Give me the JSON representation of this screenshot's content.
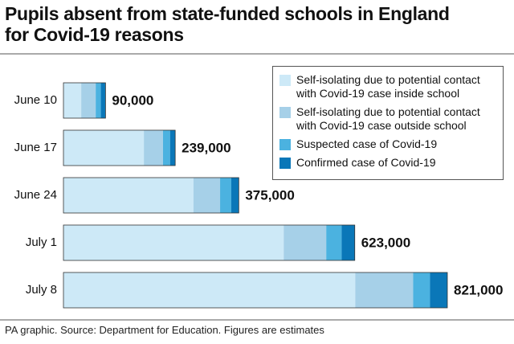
{
  "chart_data": {
    "type": "stacked-bar-horizontal",
    "title": "Pupils absent from state-funded schools in England for Covid-19 reasons",
    "source": "PA graphic. Source: Department for Education. Figures are estimates",
    "categories": [
      "June 10",
      "June 17",
      "June 24",
      "July 1",
      "July 8"
    ],
    "series": [
      {
        "name": "Self-isolating due to potential contact with Covid-19 case inside school",
        "color": "#cde9f7",
        "values": [
          38000,
          172000,
          278000,
          471000,
          624000
        ]
      },
      {
        "name": "Self-isolating due to potential contact with Covid-19 case outside school",
        "color": "#a6d0e8",
        "values": [
          31000,
          41000,
          57000,
          91000,
          124000
        ]
      },
      {
        "name": "Suspected case of Covid-19",
        "color": "#4bb2e0",
        "values": [
          11000,
          15000,
          24000,
          33000,
          36000
        ]
      },
      {
        "name": "Confirmed case of Covid-19",
        "color": "#0a77b8",
        "values": [
          10000,
          11000,
          16000,
          28000,
          37000
        ]
      }
    ],
    "totals": [
      90000,
      239000,
      375000,
      623000,
      821000
    ],
    "total_labels": [
      "90,000",
      "239,000",
      "375,000",
      "623,000",
      "821,000"
    ],
    "legend": "top-right"
  }
}
